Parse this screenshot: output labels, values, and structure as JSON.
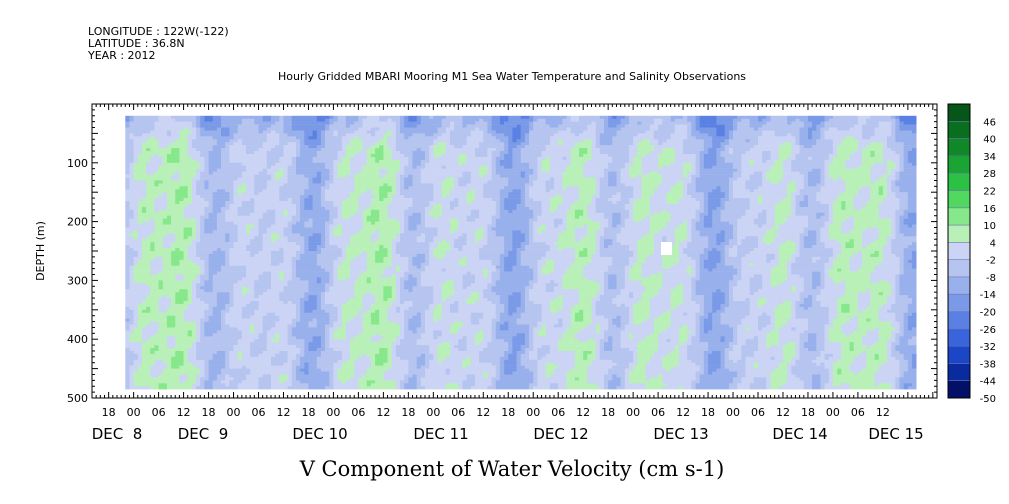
{
  "header": {
    "longitude": "LONGITUDE : 122W(-122)",
    "latitude": "LATITUDE : 36.8N",
    "year": "YEAR : 2012"
  },
  "chart_data": {
    "type": "heatmap",
    "title": "Hourly Gridded MBARI Mooring M1 Sea Water Temperature and Salinity Observations",
    "bottom_title": "V Component of Water Velocity (cm s-1)",
    "ylabel": "DEPTH (m)",
    "y_axis": {
      "reversed": true,
      "range": [
        0,
        500
      ],
      "ticks": [
        100,
        200,
        300,
        400,
        500
      ]
    },
    "x_axis": {
      "hour_ticks": [
        "18",
        "00",
        "06",
        "12",
        "18",
        "00",
        "06",
        "12",
        "18",
        "00",
        "06",
        "12",
        "18",
        "00",
        "06",
        "12",
        "18",
        "00",
        "06",
        "12",
        "18",
        "00",
        "06",
        "12",
        "18",
        "00",
        "06",
        "12",
        "18",
        "00",
        "06",
        "12"
      ],
      "date_labels": [
        "DEC  8",
        "DEC  9",
        "DEC 10",
        "DEC 11",
        "DEC 12",
        "DEC 13",
        "DEC 14",
        "DEC 15"
      ]
    },
    "colorbar": {
      "levels": [
        "46",
        "40",
        "34",
        "28",
        "22",
        "16",
        "10",
        "4",
        "-2",
        "-8",
        "-14",
        "-20",
        "-26",
        "-32",
        "-38",
        "-44",
        "-50"
      ],
      "range": [
        -50,
        52
      ],
      "palette": [
        "#041068",
        "#0a2aa0",
        "#1c46c8",
        "#3a64dc",
        "#5a80e4",
        "#7a9ae8",
        "#98b0ec",
        "#b6c4f0",
        "#cbd4f4",
        "#b8f0b8",
        "#86e88a",
        "#52d860",
        "#2cc044",
        "#1aa434",
        "#108828",
        "#0a6e20",
        "#06561a"
      ]
    },
    "data_extent": {
      "x_hours": [
        -2,
        188
      ],
      "depth_m": [
        20,
        485
      ]
    },
    "annotations": [
      "white missing-data patch near DEC 13 ~250 m"
    ]
  }
}
